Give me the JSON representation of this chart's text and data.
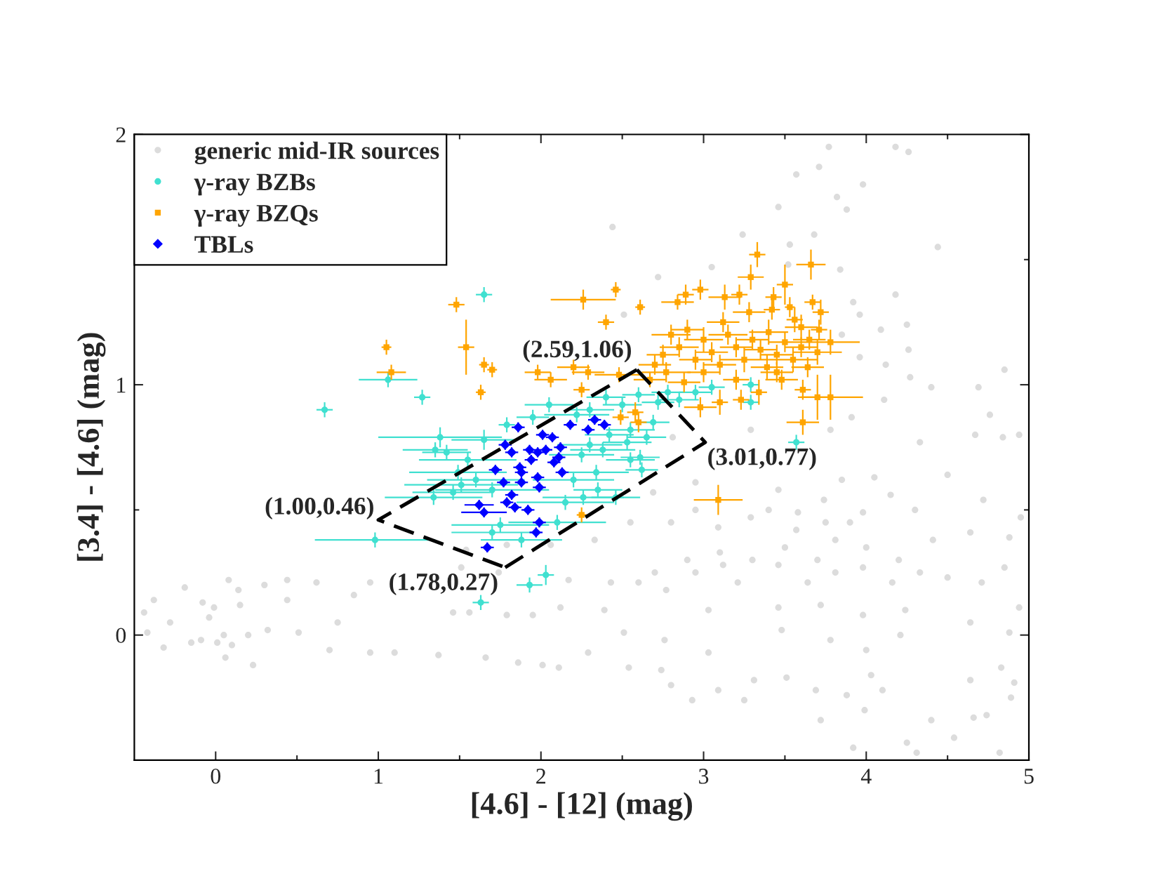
{
  "chart_data": {
    "type": "scatter",
    "xlabel": "[4.6] - [12] (mag)",
    "ylabel": "[3.4] - [4.6] (mag)",
    "xlim": [
      -0.5,
      5
    ],
    "ylim": [
      -0.5,
      2
    ],
    "xticks": [
      0,
      {
        "value": 0.5,
        "label": null
      },
      1,
      {
        "value": 1.5,
        "label": null
      },
      2,
      {
        "value": 2.5,
        "label": null
      },
      3,
      {
        "value": 3.5,
        "label": null
      },
      4,
      {
        "value": 4.5,
        "label": null
      },
      5
    ],
    "yticks": [
      0,
      {
        "value": 0.5,
        "label": null
      },
      1,
      {
        "value": 1.5,
        "label": null
      },
      2
    ],
    "legend": "top left",
    "series": [
      {
        "name": "generic mid-IR sources",
        "color": "#dcdcdc",
        "marker": "circle",
        "x": [
          3.77,
          4.18,
          4.26,
          3.71,
          3.57,
          3.98,
          3.82,
          3.88,
          3.46,
          2.44,
          3.24,
          3.68,
          3.53,
          4.44,
          3.52,
          3.05,
          3.84,
          2.72,
          4.18,
          3.92,
          3.96,
          2.51,
          4.25,
          4.09,
          3.85,
          4.26,
          3.96,
          4.12,
          4.27,
          4.85,
          4.4,
          4.69,
          4.11,
          4.76,
          4.67,
          4.84,
          4.94,
          3.91,
          3.78,
          4.33,
          3.29,
          2.81,
          2.95,
          2.69,
          2.55,
          3.46,
          3.74,
          3.98,
          4.15,
          4.5,
          4.72,
          4.64,
          4.88,
          4.95,
          3.29,
          3.57,
          3.81,
          4.41,
          2.33,
          3.09,
          3.4,
          3.85,
          3.9,
          3.5,
          3.7,
          3.3,
          4.0,
          4.2,
          3.1,
          2.9,
          2.7,
          4.3,
          2.95,
          2.8,
          4.05,
          3.58,
          3.75,
          2.6,
          2.77,
          2.95,
          3.12,
          3.21,
          3.46,
          3.64,
          3.72,
          3.46,
          3.81,
          3.98,
          4.16,
          4.33,
          4.5,
          4.24,
          3.98,
          4.71,
          4.85,
          2.43,
          3.03,
          2.29,
          2.54,
          2.74,
          2.8,
          2.93,
          3.09,
          3.25,
          3.31,
          3.51,
          3.69,
          3.72,
          3.88,
          3.99,
          3.92,
          4.25,
          4.31,
          4.4,
          4.54,
          4.66,
          4.74,
          4.82,
          4.89,
          4.91,
          4.1,
          4.64,
          4.83,
          4.03,
          4.88,
          4.94,
          4.64,
          4.21,
          4.0,
          3.78,
          3.48,
          3.03,
          2.76,
          2.51,
          2.39,
          -0.44,
          -0.38,
          -0.42,
          -0.28,
          -0.32,
          -0.19,
          -0.08,
          -0.01,
          0.08,
          0.14,
          0.3,
          0.44,
          0.62,
          0.44,
          0.15,
          -0.04,
          -0.09,
          0.01,
          0.1,
          0.32,
          0.06,
          0.23,
          0.51,
          0.7,
          0.75,
          0.85,
          0.95,
          0.95,
          1.1,
          1.37,
          1.46,
          1.56,
          1.66,
          1.79,
          1.86,
          1.95,
          2.01,
          2.11,
          2.12,
          2.17,
          1.74,
          1.51,
          1.54,
          1.79,
          2.06,
          0.05,
          0.2,
          -0.15
        ],
        "values": [
          1.95,
          1.95,
          1.93,
          1.87,
          1.84,
          1.8,
          1.75,
          1.7,
          1.71,
          1.63,
          1.6,
          1.6,
          1.56,
          1.55,
          1.48,
          1.47,
          1.46,
          1.43,
          1.36,
          1.33,
          1.28,
          1.28,
          1.24,
          1.22,
          1.2,
          1.14,
          1.11,
          1.08,
          1.03,
          1.06,
          0.99,
          0.99,
          0.94,
          0.88,
          0.8,
          0.79,
          0.8,
          0.87,
          0.82,
          0.77,
          0.82,
          0.79,
          0.61,
          0.57,
          0.45,
          0.58,
          0.54,
          0.49,
          0.56,
          0.64,
          0.54,
          0.41,
          0.39,
          0.47,
          0.47,
          0.42,
          0.38,
          0.38,
          0.38,
          0.43,
          0.5,
          0.62,
          0.45,
          0.35,
          0.3,
          0.3,
          0.35,
          0.3,
          0.33,
          0.3,
          0.25,
          0.5,
          0.5,
          0.45,
          0.63,
          0.49,
          0.45,
          0.21,
          0.18,
          0.25,
          0.28,
          0.21,
          0.28,
          0.21,
          0.12,
          0.11,
          0.25,
          0.27,
          0.21,
          0.25,
          0.23,
          0.1,
          0.08,
          0.21,
          0.27,
          0.21,
          0.1,
          -0.07,
          -0.13,
          -0.14,
          -0.2,
          -0.26,
          -0.22,
          -0.26,
          -0.18,
          -0.17,
          -0.22,
          -0.34,
          -0.24,
          -0.3,
          -0.45,
          -0.43,
          -0.47,
          -0.34,
          -0.41,
          -0.33,
          -0.32,
          -0.47,
          -0.25,
          -0.19,
          -0.22,
          -0.18,
          -0.13,
          -0.16,
          0.01,
          0.11,
          0.05,
          0.0,
          -0.06,
          -0.02,
          0.02,
          -0.07,
          -0.02,
          0.01,
          0.1,
          0.09,
          0.14,
          0.01,
          0.05,
          -0.05,
          0.19,
          0.13,
          0.11,
          0.22,
          0.18,
          0.2,
          0.22,
          0.21,
          0.14,
          0.12,
          0.07,
          -0.02,
          -0.03,
          -0.04,
          0.02,
          -0.09,
          -0.12,
          0.01,
          -0.06,
          0.05,
          0.16,
          0.21,
          -0.07,
          -0.07,
          -0.08,
          0.09,
          0.09,
          -0.09,
          0.08,
          -0.11,
          0.08,
          -0.12,
          -0.13,
          0.11,
          0.22,
          0.25,
          0.27,
          0.34,
          0.36,
          0.36,
          0.0,
          0.0,
          -0.03
        ]
      },
      {
        "name": "γ-ray BZBs",
        "color": "#40e0d0",
        "marker": "circle",
        "x": [
          0.67,
          1.06,
          1.27,
          1.65,
          1.38,
          1.35,
          1.42,
          1.49,
          1.51,
          1.46,
          1.34,
          0.98,
          1.65,
          1.7,
          1.63,
          1.93,
          2.03,
          1.79,
          3.29,
          3.29,
          3.57,
          2.69,
          2.65,
          2.61,
          2.62,
          2.46,
          2.34,
          2.53,
          2.2,
          2.25,
          2.3,
          2.38,
          2.42,
          2.5,
          2.55,
          2.6,
          2.72,
          2.78,
          2.85,
          2.26,
          2.15,
          2.1,
          2.3,
          2.4,
          2.22,
          2.05,
          1.95,
          1.7,
          1.55,
          1.6,
          1.75,
          1.88,
          2.55,
          2.35,
          2.95,
          3.05
        ],
        "values": [
          0.9,
          1.02,
          0.95,
          1.36,
          0.79,
          0.74,
          0.73,
          0.65,
          0.6,
          0.57,
          0.55,
          0.38,
          0.78,
          0.41,
          0.13,
          0.2,
          0.24,
          0.84,
          1.0,
          0.93,
          0.77,
          0.85,
          0.79,
          0.71,
          0.66,
          0.55,
          0.65,
          0.77,
          0.62,
          0.72,
          0.76,
          0.74,
          0.8,
          0.92,
          0.82,
          0.96,
          0.93,
          0.97,
          0.94,
          0.55,
          0.53,
          0.45,
          0.9,
          0.95,
          0.88,
          0.92,
          0.87,
          0.58,
          0.7,
          0.62,
          0.44,
          0.38,
          0.7,
          0.58,
          0.97,
          0.99
        ],
        "xerrors": [
          0.05,
          0.18,
          0.05,
          0.05,
          0.38,
          0.2,
          0.15,
          0.3,
          0.35,
          0.25,
          0.3,
          0.37,
          0.2,
          0.25,
          0.05,
          0.08,
          0.05,
          0.05,
          0.05,
          0.05,
          0.05,
          0.1,
          0.12,
          0.12,
          0.1,
          0.15,
          0.2,
          0.15,
          0.25,
          0.2,
          0.2,
          0.2,
          0.15,
          0.12,
          0.15,
          0.1,
          0.1,
          0.1,
          0.12,
          0.25,
          0.3,
          0.3,
          0.15,
          0.12,
          0.2,
          0.15,
          0.1,
          0.35,
          0.3,
          0.3,
          0.3,
          0.25,
          0.15,
          0.15,
          0.1,
          0.08
        ],
        "errors": [
          0.03,
          0.03,
          0.03,
          0.03,
          0.04,
          0.03,
          0.03,
          0.03,
          0.03,
          0.03,
          0.03,
          0.03,
          0.04,
          0.03,
          0.03,
          0.03,
          0.04,
          0.03,
          0.03,
          0.03,
          0.03,
          0.03,
          0.03,
          0.03,
          0.03,
          0.03,
          0.03,
          0.03,
          0.03,
          0.03,
          0.03,
          0.03,
          0.03,
          0.03,
          0.03,
          0.03,
          0.03,
          0.03,
          0.03,
          0.03,
          0.03,
          0.03,
          0.03,
          0.03,
          0.03,
          0.03,
          0.03,
          0.03,
          0.03,
          0.03,
          0.03,
          0.03,
          0.03,
          0.03,
          0.03,
          0.03
        ]
      },
      {
        "name": "γ-ray BZQs",
        "color": "#ffa500",
        "marker": "square",
        "x": [
          1.05,
          1.08,
          1.48,
          1.54,
          1.65,
          1.7,
          1.63,
          2.26,
          2.46,
          2.4,
          2.61,
          3.33,
          3.66,
          3.29,
          3.5,
          3.22,
          3.43,
          3.13,
          2.98,
          2.84,
          2.89,
          3.67,
          3.72,
          3.53,
          3.28,
          3.42,
          3.71,
          3.6,
          3.56,
          3.61,
          3.7,
          3.78,
          3.61,
          3.64,
          3.34,
          3.23,
          3.1,
          3.09,
          2.6,
          2.49,
          2.58,
          2.98,
          3.48,
          3.45,
          3.39,
          3.2,
          2.88,
          2.77,
          2.67,
          2.48,
          2.25,
          3.78,
          2.06,
          2.29,
          2.75,
          2.85,
          2.95,
          3.0,
          3.05,
          3.1,
          3.15,
          3.2,
          3.25,
          3.3,
          3.35,
          3.4,
          3.45,
          3.5,
          3.55,
          2.9,
          2.8,
          2.7,
          3.0,
          3.12,
          3.6,
          3.7,
          3.65,
          1.98,
          2.2,
          2.25
        ],
        "values": [
          1.15,
          1.05,
          1.32,
          1.15,
          1.08,
          1.06,
          0.97,
          1.34,
          1.38,
          1.25,
          1.31,
          1.52,
          1.48,
          1.43,
          1.4,
          1.36,
          1.35,
          1.35,
          1.38,
          1.33,
          1.36,
          1.33,
          1.29,
          1.31,
          1.29,
          1.3,
          1.22,
          1.23,
          1.26,
          0.85,
          0.95,
          0.95,
          0.98,
          1.07,
          0.97,
          0.94,
          0.93,
          0.54,
          0.85,
          0.87,
          0.89,
          0.91,
          1.02,
          1.05,
          1.07,
          1.02,
          1.01,
          1.05,
          1.02,
          1.04,
          0.48,
          1.17,
          1.02,
          1.05,
          1.12,
          1.15,
          1.1,
          1.18,
          1.13,
          1.08,
          1.2,
          1.15,
          1.1,
          1.18,
          1.14,
          1.21,
          1.12,
          1.17,
          1.1,
          1.22,
          1.2,
          1.08,
          1.05,
          1.25,
          1.15,
          1.13,
          1.18,
          1.05,
          1.07,
          0.98
        ],
        "xerrors": [
          0.03,
          0.09,
          0.05,
          0.05,
          0.03,
          0.03,
          0.03,
          0.2,
          0.03,
          0.05,
          0.03,
          0.05,
          0.09,
          0.08,
          0.05,
          0.05,
          0.05,
          0.1,
          0.05,
          0.1,
          0.05,
          0.05,
          0.05,
          0.03,
          0.1,
          0.05,
          0.05,
          0.1,
          0.05,
          0.1,
          0.1,
          0.2,
          0.05,
          0.1,
          0.05,
          0.05,
          0.05,
          0.15,
          0.05,
          0.05,
          0.05,
          0.1,
          0.1,
          0.1,
          0.1,
          0.08,
          0.1,
          0.15,
          0.1,
          0.15,
          0.03,
          0.18,
          0.1,
          0.1,
          0.1,
          0.12,
          0.1,
          0.12,
          0.1,
          0.1,
          0.12,
          0.1,
          0.15,
          0.1,
          0.1,
          0.12,
          0.1,
          0.1,
          0.15,
          0.1,
          0.12,
          0.1,
          0.1,
          0.1,
          0.1,
          0.15,
          0.1,
          0.08,
          0.1,
          0.05
        ],
        "errors": [
          0.03,
          0.03,
          0.03,
          0.11,
          0.03,
          0.03,
          0.03,
          0.04,
          0.03,
          0.03,
          0.03,
          0.05,
          0.06,
          0.05,
          0.08,
          0.04,
          0.04,
          0.05,
          0.04,
          0.03,
          0.04,
          0.03,
          0.05,
          0.04,
          0.04,
          0.04,
          0.04,
          0.05,
          0.05,
          0.05,
          0.09,
          0.09,
          0.04,
          0.04,
          0.05,
          0.04,
          0.05,
          0.06,
          0.04,
          0.03,
          0.04,
          0.04,
          0.04,
          0.04,
          0.05,
          0.04,
          0.04,
          0.04,
          0.03,
          0.03,
          0.03,
          0.05,
          0.03,
          0.03,
          0.04,
          0.04,
          0.04,
          0.05,
          0.04,
          0.04,
          0.04,
          0.04,
          0.05,
          0.04,
          0.04,
          0.05,
          0.04,
          0.04,
          0.05,
          0.04,
          0.04,
          0.04,
          0.04,
          0.04,
          0.04,
          0.05,
          0.04,
          0.03,
          0.03,
          0.03
        ]
      },
      {
        "name": "TBLs",
        "color": "#0000ff",
        "marker": "diamond",
        "x": [
          1.86,
          1.78,
          1.82,
          2.01,
          2.07,
          1.93,
          1.98,
          2.03,
          2.12,
          2.18,
          2.11,
          2.08,
          1.94,
          1.87,
          1.88,
          1.72,
          2.13,
          1.98,
          1.88,
          1.77,
          1.99,
          1.82,
          1.79,
          1.84,
          1.62,
          1.65,
          1.92,
          1.99,
          1.97,
          1.67,
          2.29,
          2.33,
          2.39
        ],
        "values": [
          0.83,
          0.76,
          0.73,
          0.8,
          0.79,
          0.74,
          0.73,
          0.74,
          0.75,
          0.84,
          0.71,
          0.69,
          0.7,
          0.67,
          0.65,
          0.66,
          0.65,
          0.63,
          0.61,
          0.61,
          0.59,
          0.56,
          0.53,
          0.51,
          0.52,
          0.49,
          0.5,
          0.45,
          0.41,
          0.35,
          0.82,
          0.86,
          0.84
        ],
        "xerrors": [
          0.04,
          0.04,
          0.04,
          0.04,
          0.04,
          0.04,
          0.04,
          0.04,
          0.04,
          0.04,
          0.04,
          0.04,
          0.04,
          0.04,
          0.04,
          0.04,
          0.04,
          0.04,
          0.04,
          0.04,
          0.04,
          0.04,
          0.04,
          0.04,
          0.09,
          0.14,
          0.04,
          0.04,
          0.04,
          0.04,
          0.04,
          0.04,
          0.04
        ],
        "errors": [
          0.02,
          0.02,
          0.02,
          0.02,
          0.02,
          0.02,
          0.02,
          0.02,
          0.02,
          0.02,
          0.02,
          0.02,
          0.02,
          0.02,
          0.02,
          0.02,
          0.02,
          0.02,
          0.02,
          0.02,
          0.02,
          0.02,
          0.02,
          0.02,
          0.02,
          0.02,
          0.02,
          0.02,
          0.02,
          0.02,
          0.02,
          0.02,
          0.02
        ]
      },
      {
        "type": "line",
        "color": "#000000",
        "line_style": "dashed",
        "marker": "none",
        "x": [
          2.59,
          1.0,
          1.78
        ],
        "values": [
          1.06,
          0.46,
          0.27
        ]
      },
      {
        "type": "line",
        "color": "#000000",
        "line_style": "dashed",
        "marker": "none",
        "x": [
          1.78,
          3.01,
          2.59
        ],
        "values": [
          0.27,
          0.77,
          1.06
        ]
      }
    ],
    "annotations": [
      {
        "text": "(1.00,0.46)",
        "x": 1.0,
        "y": 0.46
      },
      {
        "text": "(1.78,0.27)",
        "x": 1.78,
        "y": 0.27
      },
      {
        "text": "(3.01,0.77)",
        "x": 3.01,
        "y": 0.77
      },
      {
        "text": "(2.59,1.06)",
        "x": 2.59,
        "y": 1.06
      }
    ]
  }
}
